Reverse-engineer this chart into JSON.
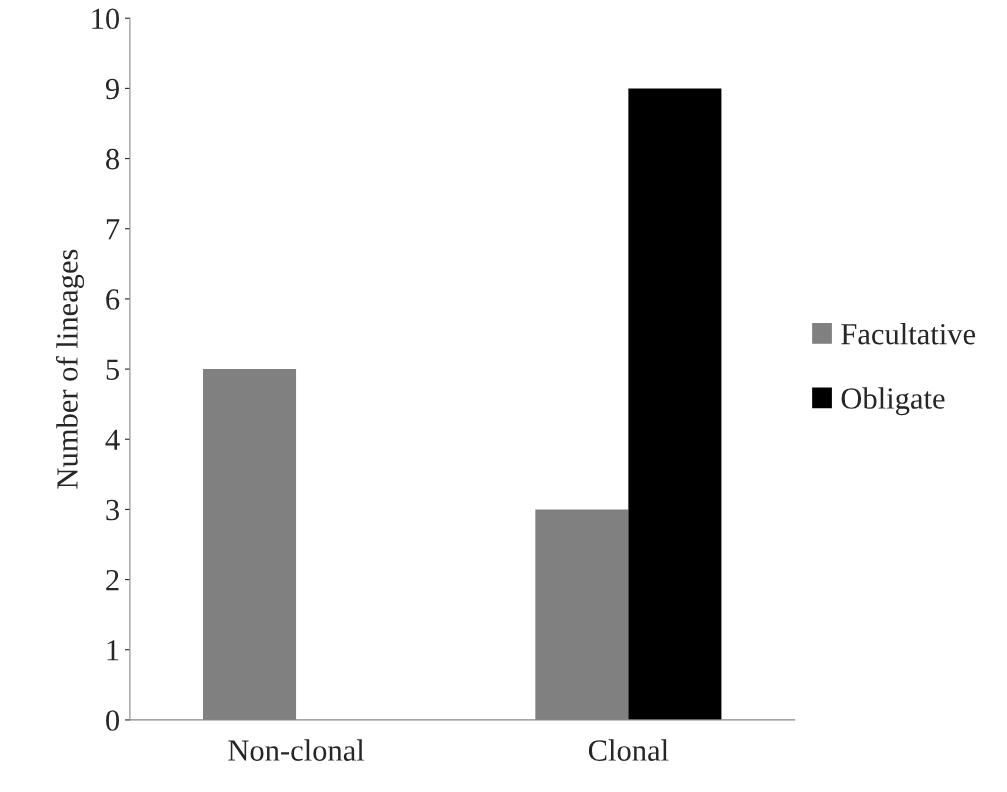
{
  "chart_data": {
    "type": "bar",
    "ylabel": "Number of lineages",
    "categories": [
      "Non-clonal",
      "Clonal"
    ],
    "series": [
      {
        "name": "Facultative",
        "color": "#808080",
        "values": [
          5,
          3
        ]
      },
      {
        "name": "Obligate",
        "color": "#000000",
        "values": [
          0,
          9
        ]
      }
    ],
    "ylim": [
      0,
      10
    ],
    "yticks": [
      0,
      1,
      2,
      3,
      4,
      5,
      6,
      7,
      8,
      9,
      10
    ],
    "legend": "right"
  }
}
